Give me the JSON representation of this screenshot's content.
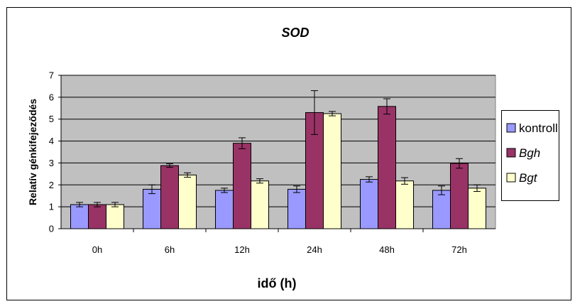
{
  "chart_data": {
    "type": "bar",
    "title": "SOD",
    "xlabel": "idő (h)",
    "ylabel": "Relatív génkifejeződés",
    "categories": [
      "0h",
      "6h",
      "12h",
      "24h",
      "48h",
      "72h"
    ],
    "ylim": [
      0,
      7
    ],
    "yticks": [
      0,
      1,
      2,
      3,
      4,
      5,
      6,
      7
    ],
    "grid": true,
    "legend_position": "right",
    "series": [
      {
        "name": "kontroll",
        "italic": false,
        "color": "#9999ff",
        "values": [
          1.1,
          1.8,
          1.75,
          1.8,
          2.25,
          1.75
        ],
        "errors": [
          0.1,
          0.2,
          0.1,
          0.15,
          0.12,
          0.2
        ]
      },
      {
        "name": "Bgh",
        "italic": true,
        "color": "#993366",
        "values": [
          1.1,
          2.88,
          3.9,
          5.3,
          5.58,
          2.98
        ],
        "errors": [
          0.1,
          0.08,
          0.25,
          1.0,
          0.35,
          0.22
        ]
      },
      {
        "name": "Bgt",
        "italic": true,
        "color": "#ffffcc",
        "values": [
          1.1,
          2.45,
          2.18,
          5.25,
          2.18,
          1.85
        ],
        "errors": [
          0.1,
          0.1,
          0.1,
          0.1,
          0.15,
          0.15
        ]
      }
    ]
  }
}
